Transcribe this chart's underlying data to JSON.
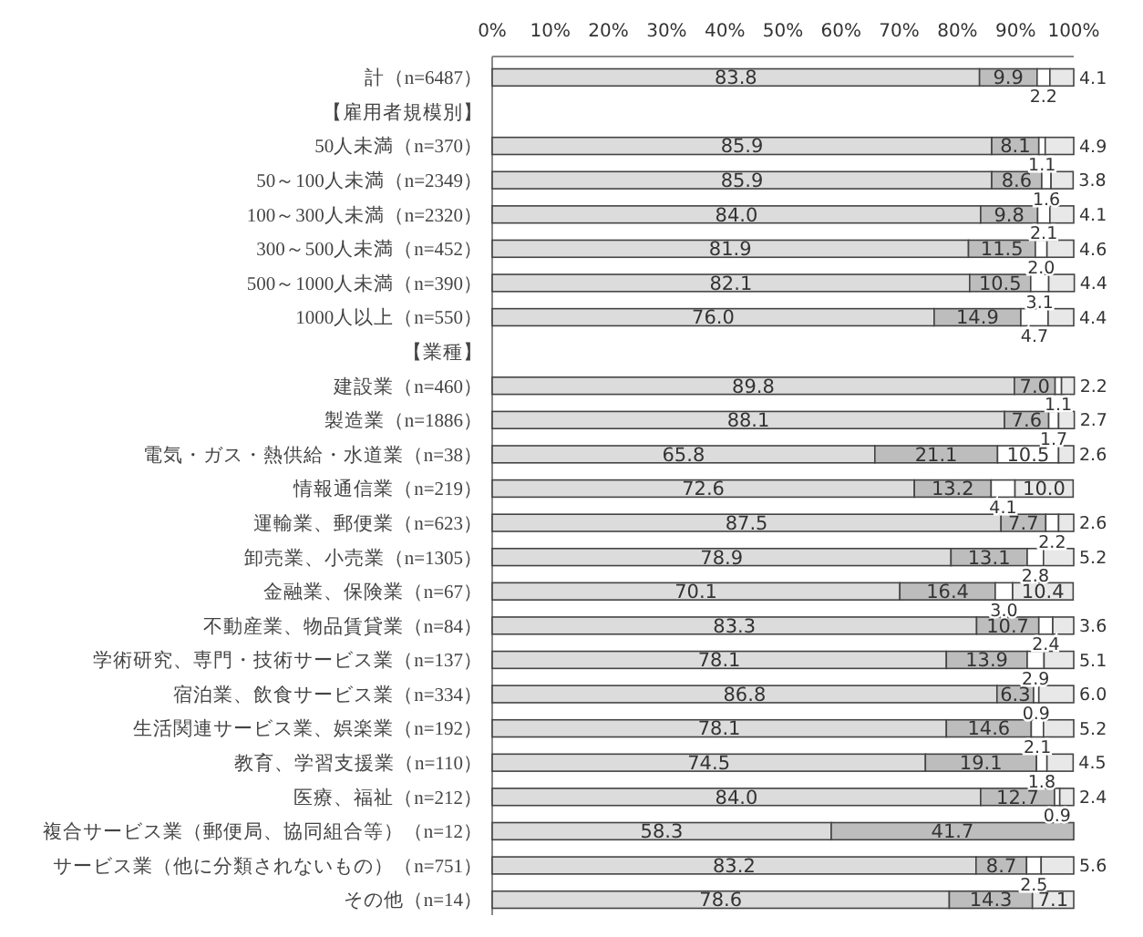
{
  "chart_data": {
    "type": "bar",
    "orientation": "horizontal",
    "stacked": true,
    "categories": [
      "計（n=6487）",
      "【雇用者規模別】",
      "50人未満（n=370）",
      "50～100人未満（n=2349）",
      "100～300人未満（n=2320）",
      "300～500人未満（n=452）",
      "500～1000人未満（n=390）",
      "1000人以上（n=550）",
      "【業種】",
      "建設業（n=460）",
      "製造業（n=1886）",
      "電気・ガス・熱供給・水道業（n=38）",
      "情報通信業（n=219）",
      "運輸業、郵便業（n=623）",
      "卸売業、小売業（n=1305）",
      "金融業、保険業（n=67）",
      "不動産業、物品賃貸業（n=84）",
      "学術研究、専門・技術サービス業（n=137）",
      "宿泊業、飲食サービス業（n=334）",
      "生活関連サービス業、娯楽業（n=192）",
      "教育、学習支援業（n=110）",
      "医療、福祉（n=212）",
      "複合サービス業（郵便局、協同組合等）（n=12）",
      "サービス業（他に分類されないもの）（n=751）",
      "その他（n=14）"
    ],
    "series": [
      {
        "color": "#dcdcdc",
        "values": [
          83.8,
          null,
          85.9,
          85.9,
          84.0,
          81.9,
          82.1,
          76.0,
          null,
          89.8,
          88.1,
          65.8,
          72.6,
          87.5,
          78.9,
          70.1,
          83.3,
          78.1,
          86.8,
          78.1,
          74.5,
          84.0,
          58.3,
          83.2,
          78.6
        ],
        "value_labels": [
          "83.8",
          null,
          "85.9",
          "85.9",
          "84.0",
          "81.9",
          "82.1",
          "76.0",
          null,
          "89.8",
          "88.1",
          "65.8",
          "72.6",
          "87.5",
          "78.9",
          "70.1",
          "83.3",
          "78.1",
          "86.8",
          "78.1",
          "74.5",
          "84.0",
          "58.3",
          "83.2",
          "78.6"
        ]
      },
      {
        "color": "#bdbdbd",
        "values": [
          9.9,
          null,
          8.1,
          8.6,
          9.8,
          11.5,
          10.5,
          14.9,
          null,
          7.0,
          7.6,
          21.1,
          13.2,
          7.7,
          13.1,
          16.4,
          10.7,
          13.9,
          6.3,
          14.6,
          19.1,
          12.7,
          41.7,
          8.7,
          14.3
        ],
        "value_labels": [
          "9.9",
          null,
          "8.1",
          "8.6",
          "9.8",
          "11.5",
          "10.5",
          "14.9",
          null,
          "7.0",
          "7.6",
          "21.1",
          "13.2",
          "7.7",
          "13.1",
          "16.4",
          "10.7",
          "13.9",
          "6.3",
          "14.6",
          "19.1",
          "12.7",
          "41.7",
          "8.7",
          "14.3"
        ]
      },
      {
        "color": "#ffffff",
        "values": [
          2.2,
          null,
          1.1,
          1.6,
          2.1,
          2.0,
          3.1,
          4.7,
          null,
          1.1,
          1.7,
          10.5,
          4.1,
          2.2,
          2.8,
          3.0,
          2.4,
          2.9,
          0.9,
          2.1,
          1.8,
          0.9,
          0,
          2.5,
          0
        ],
        "value_labels": [
          "2.2",
          null,
          "1.1",
          "1.6",
          "2.1",
          "2.0",
          "3.1",
          "4.7",
          null,
          "1.1",
          "1.7",
          "10.5",
          "4.1",
          "2.2",
          "2.8",
          "3.0",
          "2.4",
          "2.9",
          "0.9",
          "2.1",
          "1.8",
          "0.9",
          null,
          "2.5",
          null
        ]
      },
      {
        "color": "#e8e8e8",
        "values": [
          4.1,
          null,
          4.9,
          3.8,
          4.1,
          4.6,
          4.4,
          4.4,
          null,
          2.2,
          2.7,
          2.6,
          10.0,
          2.6,
          5.2,
          10.4,
          3.6,
          5.1,
          6.0,
          5.2,
          4.5,
          2.4,
          0,
          5.6,
          7.1
        ],
        "value_labels": [
          "4.1",
          null,
          "4.9",
          "3.8",
          "4.1",
          "4.6",
          "4.4",
          "4.4",
          null,
          "2.2",
          "2.7",
          "2.6",
          "10.0",
          "2.6",
          "5.2",
          "10.4",
          "3.6",
          "5.1",
          "6.0",
          "5.2",
          "4.5",
          "2.4",
          null,
          "5.6",
          "7.1"
        ]
      }
    ],
    "xlim": [
      0,
      100
    ],
    "xticks": [
      {
        "value": 0,
        "label": "0%"
      },
      {
        "value": 10,
        "label": "10%"
      },
      {
        "value": 20,
        "label": "20%"
      },
      {
        "value": 30,
        "label": "30%"
      },
      {
        "value": 40,
        "label": "40%"
      },
      {
        "value": 50,
        "label": "50%"
      },
      {
        "value": 60,
        "label": "60%"
      },
      {
        "value": 70,
        "label": "70%"
      },
      {
        "value": 80,
        "label": "80%"
      },
      {
        "value": 90,
        "label": "90%"
      },
      {
        "value": 100,
        "label": "100%"
      }
    ],
    "grid": false
  }
}
